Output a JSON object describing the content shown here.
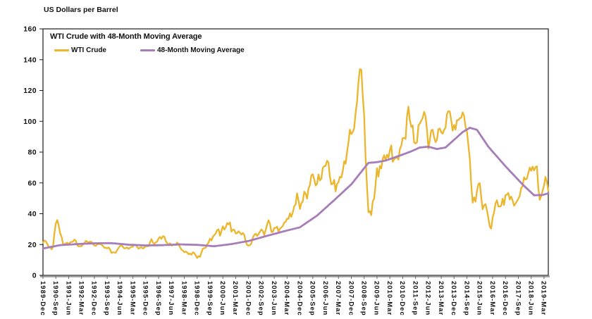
{
  "chart": {
    "axis_title": "US Dollars per Barrel",
    "title": "WTI Crude with 48-Month Moving Average",
    "legend": [
      {
        "label": "WTI Crude",
        "color": "#EBB62C"
      },
      {
        "label": "48-Month Moving Average",
        "color": "#A67CB9"
      }
    ]
  },
  "chart_data": {
    "type": "line",
    "title": "WTI Crude with 48-Month Moving Average",
    "xlabel": "",
    "ylabel": "US Dollars per Barrel",
    "ylim": [
      0,
      160
    ],
    "yticks": [
      0,
      20,
      40,
      60,
      80,
      100,
      120,
      140,
      160
    ],
    "grid": false,
    "legend_position": "top-left-inside",
    "x_unit": "month",
    "x_start": "1989-Dec",
    "x_end": "2019-Jun",
    "months_total": 355,
    "xtick_step_months": 9,
    "xtick_labels": [
      "1989-Dec",
      "1990-Sep",
      "1991-Jun",
      "1992-Mar",
      "1992-Dec",
      "1993-Sep",
      "1994-Jun",
      "1995-Mar",
      "1995-Dec",
      "1996-Sep",
      "1997-Jun",
      "1998-Mar",
      "1998-Dec",
      "1999-Sep",
      "2000-Jun",
      "2001-Mar",
      "2001-Dec",
      "2002-Sep",
      "2003-Jun",
      "2004-Mar",
      "2004-Dec",
      "2005-Sep",
      "2006-Jun",
      "2007-Mar",
      "2007-Dec",
      "2008-Sep",
      "2009-Jun",
      "2010-Mar",
      "2010-Dec",
      "2011-Sep",
      "2012-Jun",
      "2013-Mar",
      "2013-Dec",
      "2014-Sep",
      "2015-Jun",
      "2016-Mar",
      "2016-Dec",
      "2017-Sep",
      "2018-Jun",
      "2019-Mar"
    ],
    "series": [
      {
        "name": "WTI Crude",
        "color": "#EBB62C",
        "stroke_width": 2.3,
        "monthly_values": [
          21.1,
          22.6,
          22.1,
          20.4,
          18.6,
          18.2,
          16.9,
          18.4,
          27.2,
          33.7,
          35.9,
          32.3,
          27.3,
          25.2,
          20.5,
          19.9,
          20.8,
          21.2,
          20.2,
          21.4,
          21.7,
          21.9,
          23.2,
          22.5,
          19.5,
          18.8,
          19.0,
          18.9,
          20.2,
          20.9,
          22.4,
          21.8,
          21.3,
          21.9,
          21.7,
          20.3,
          19.4,
          19.1,
          20.1,
          20.3,
          20.3,
          19.9,
          19.1,
          17.9,
          18.0,
          17.5,
          18.1,
          16.7,
          14.5,
          15.0,
          14.8,
          14.7,
          16.4,
          17.9,
          19.1,
          19.7,
          18.4,
          17.5,
          17.7,
          18.1,
          17.2,
          18.0,
          18.5,
          18.6,
          19.9,
          19.7,
          18.4,
          17.3,
          18.0,
          18.2,
          17.4,
          18.0,
          19.0,
          18.9,
          19.1,
          21.4,
          23.5,
          21.2,
          20.5,
          21.3,
          22.0,
          24.0,
          24.9,
          23.7,
          25.4,
          25.1,
          22.2,
          21.0,
          19.7,
          20.8,
          19.3,
          19.6,
          19.9,
          19.8,
          21.3,
          20.2,
          18.3,
          16.7,
          16.1,
          15.0,
          15.4,
          14.9,
          13.7,
          14.1,
          13.4,
          15.0,
          14.4,
          13.0,
          11.3,
          12.5,
          12.0,
          14.7,
          17.3,
          17.7,
          17.9,
          20.1,
          21.3,
          23.8,
          22.6,
          25.0,
          26.1,
          27.2,
          29.4,
          29.9,
          25.7,
          28.8,
          31.8,
          29.7,
          31.1,
          33.9,
          33.1,
          34.4,
          28.4,
          29.6,
          29.6,
          27.2,
          27.4,
          28.6,
          27.6,
          26.5,
          27.5,
          26.2,
          22.2,
          19.7,
          19.3,
          19.7,
          20.7,
          24.4,
          26.3,
          27.0,
          25.5,
          26.9,
          28.4,
          29.7,
          28.9,
          26.3,
          29.4,
          33.0,
          35.8,
          33.5,
          28.2,
          28.1,
          30.7,
          30.8,
          31.6,
          28.3,
          30.3,
          31.1,
          32.1,
          34.3,
          34.7,
          36.8,
          36.7,
          40.3,
          38.0,
          40.8,
          44.9,
          46.0,
          53.3,
          48.5,
          43.1,
          46.8,
          48.0,
          54.3,
          53.0,
          49.8,
          56.3,
          58.7,
          65.0,
          65.6,
          62.4,
          58.3,
          59.4,
          65.5,
          61.6,
          62.9,
          69.7,
          70.9,
          71.0,
          74.4,
          73.1,
          63.9,
          59.1,
          59.4,
          62.0,
          54.5,
          59.3,
          60.6,
          64.0,
          63.5,
          67.5,
          74.1,
          72.4,
          79.9,
          86.2,
          94.6,
          91.7,
          93.0,
          95.4,
          105.5,
          112.6,
          125.4,
          133.9,
          133.4,
          116.7,
          103.9,
          76.7,
          57.4,
          41.0,
          41.7,
          39.1,
          48.0,
          49.8,
          59.0,
          69.6,
          64.1,
          71.0,
          69.4,
          75.7,
          78.0,
          74.5,
          78.3,
          76.4,
          81.2,
          84.4,
          73.7,
          75.3,
          76.3,
          76.6,
          75.2,
          81.9,
          84.2,
          89.1,
          89.2,
          88.6,
          102.9,
          109.5,
          100.9,
          96.3,
          97.3,
          86.3,
          85.6,
          86.4,
          97.2,
          98.6,
          100.3,
          102.2,
          106.2,
          103.3,
          94.7,
          82.3,
          87.9,
          94.1,
          94.5,
          89.5,
          86.5,
          87.9,
          94.8,
          95.3,
          92.9,
          92.0,
          94.5,
          95.8,
          104.7,
          106.6,
          106.3,
          100.5,
          93.9,
          97.6,
          94.6,
          100.8,
          100.8,
          102.1,
          102.2,
          105.8,
          103.6,
          96.5,
          93.2,
          84.4,
          75.8,
          59.3,
          47.2,
          50.6,
          47.8,
          54.5,
          59.3,
          59.8,
          50.9,
          42.9,
          45.5,
          46.2,
          42.4,
          37.2,
          31.7,
          30.3,
          37.6,
          40.8,
          46.7,
          48.8,
          44.7,
          44.7,
          45.2,
          49.8,
          45.7,
          52.0,
          52.5,
          53.5,
          49.3,
          51.1,
          48.5,
          45.2,
          46.6,
          48.0,
          49.8,
          51.6,
          56.6,
          57.9,
          63.7,
          62.2,
          62.7,
          66.3,
          70.0,
          67.9,
          70.6,
          68.1,
          70.2,
          70.8,
          57.0,
          49.0,
          51.4,
          55.0,
          58.2,
          63.9,
          60.8,
          54.7
        ]
      },
      {
        "name": "48-Month Moving Average",
        "color": "#A67CB9",
        "stroke_width": 2.8,
        "anchor_points": {
          "month_index": [
            0,
            12,
            24,
            36,
            48,
            60,
            72,
            84,
            96,
            108,
            120,
            132,
            144,
            156,
            168,
            180,
            192,
            204,
            216,
            228,
            234,
            240,
            252,
            258,
            264,
            270,
            276,
            282,
            288,
            294,
            299,
            304,
            312,
            324,
            336,
            344,
            350,
            354
          ],
          "value": [
            17.4,
            19.6,
            20.3,
            20.8,
            20.9,
            19.9,
            19.4,
            19.6,
            20.1,
            19.8,
            18.9,
            20.3,
            22.3,
            25.4,
            28.4,
            31.2,
            38.8,
            48.8,
            59.1,
            73.0,
            73.5,
            74.5,
            78.4,
            80.5,
            83.0,
            83.5,
            82.0,
            83.0,
            88.0,
            93.0,
            95.8,
            94.5,
            83.5,
            70.8,
            59.0,
            52.0,
            52.2,
            53.2
          ]
        }
      }
    ]
  }
}
